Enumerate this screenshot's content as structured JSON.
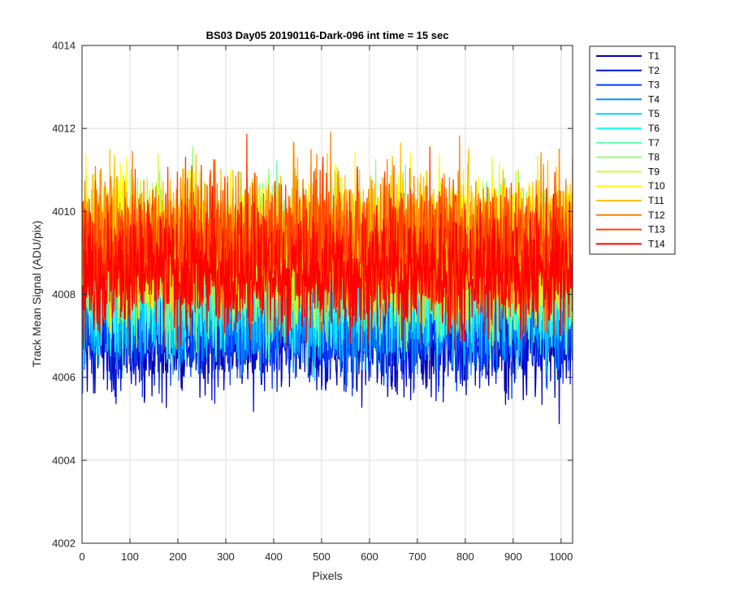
{
  "chart_data": {
    "type": "line",
    "title": "BS03 Day05 20190116-Dark-096 int time = 15 sec",
    "xlabel": "Pixels",
    "ylabel": "Track Mean Signal (ADU/pix)",
    "xlim": [
      0,
      1024
    ],
    "ylim": [
      4002,
      4014
    ],
    "xticks": [
      "0",
      "100",
      "200",
      "300",
      "400",
      "500",
      "600",
      "700",
      "800",
      "900",
      "1000"
    ],
    "yticks": [
      "4002",
      "4004",
      "4006",
      "4008",
      "4010",
      "4012",
      "4014"
    ],
    "grid": true,
    "legend_position": "outside-top-right",
    "n_points": 1024,
    "series": [
      {
        "name": "T1",
        "color": "#0000b0",
        "mean": 4006.9,
        "spread": 1.0
      },
      {
        "name": "T2",
        "color": "#0010d8",
        "mean": 4007.1,
        "spread": 1.0
      },
      {
        "name": "T3",
        "color": "#0040ff",
        "mean": 4007.3,
        "spread": 1.0
      },
      {
        "name": "T4",
        "color": "#0090ff",
        "mean": 4007.6,
        "spread": 1.1
      },
      {
        "name": "T5",
        "color": "#00d0ff",
        "mean": 4008.0,
        "spread": 1.2
      },
      {
        "name": "T6",
        "color": "#20ffef",
        "mean": 4008.3,
        "spread": 1.2
      },
      {
        "name": "T7",
        "color": "#60ffaf",
        "mean": 4008.6,
        "spread": 1.3
      },
      {
        "name": "T8",
        "color": "#90ff70",
        "mean": 4008.9,
        "spread": 1.3
      },
      {
        "name": "T9",
        "color": "#d0ff30",
        "mean": 4009.1,
        "spread": 1.3
      },
      {
        "name": "T10",
        "color": "#ffff00",
        "mean": 4009.3,
        "spread": 1.3
      },
      {
        "name": "T11",
        "color": "#ffc000",
        "mean": 4009.4,
        "spread": 1.3
      },
      {
        "name": "T12",
        "color": "#ff8000",
        "mean": 4009.3,
        "spread": 1.3
      },
      {
        "name": "T13",
        "color": "#ff4000",
        "mean": 4009.2,
        "spread": 1.3
      },
      {
        "name": "T14",
        "color": "#ff0000",
        "mean": 4008.5,
        "spread": 1.2
      }
    ]
  }
}
